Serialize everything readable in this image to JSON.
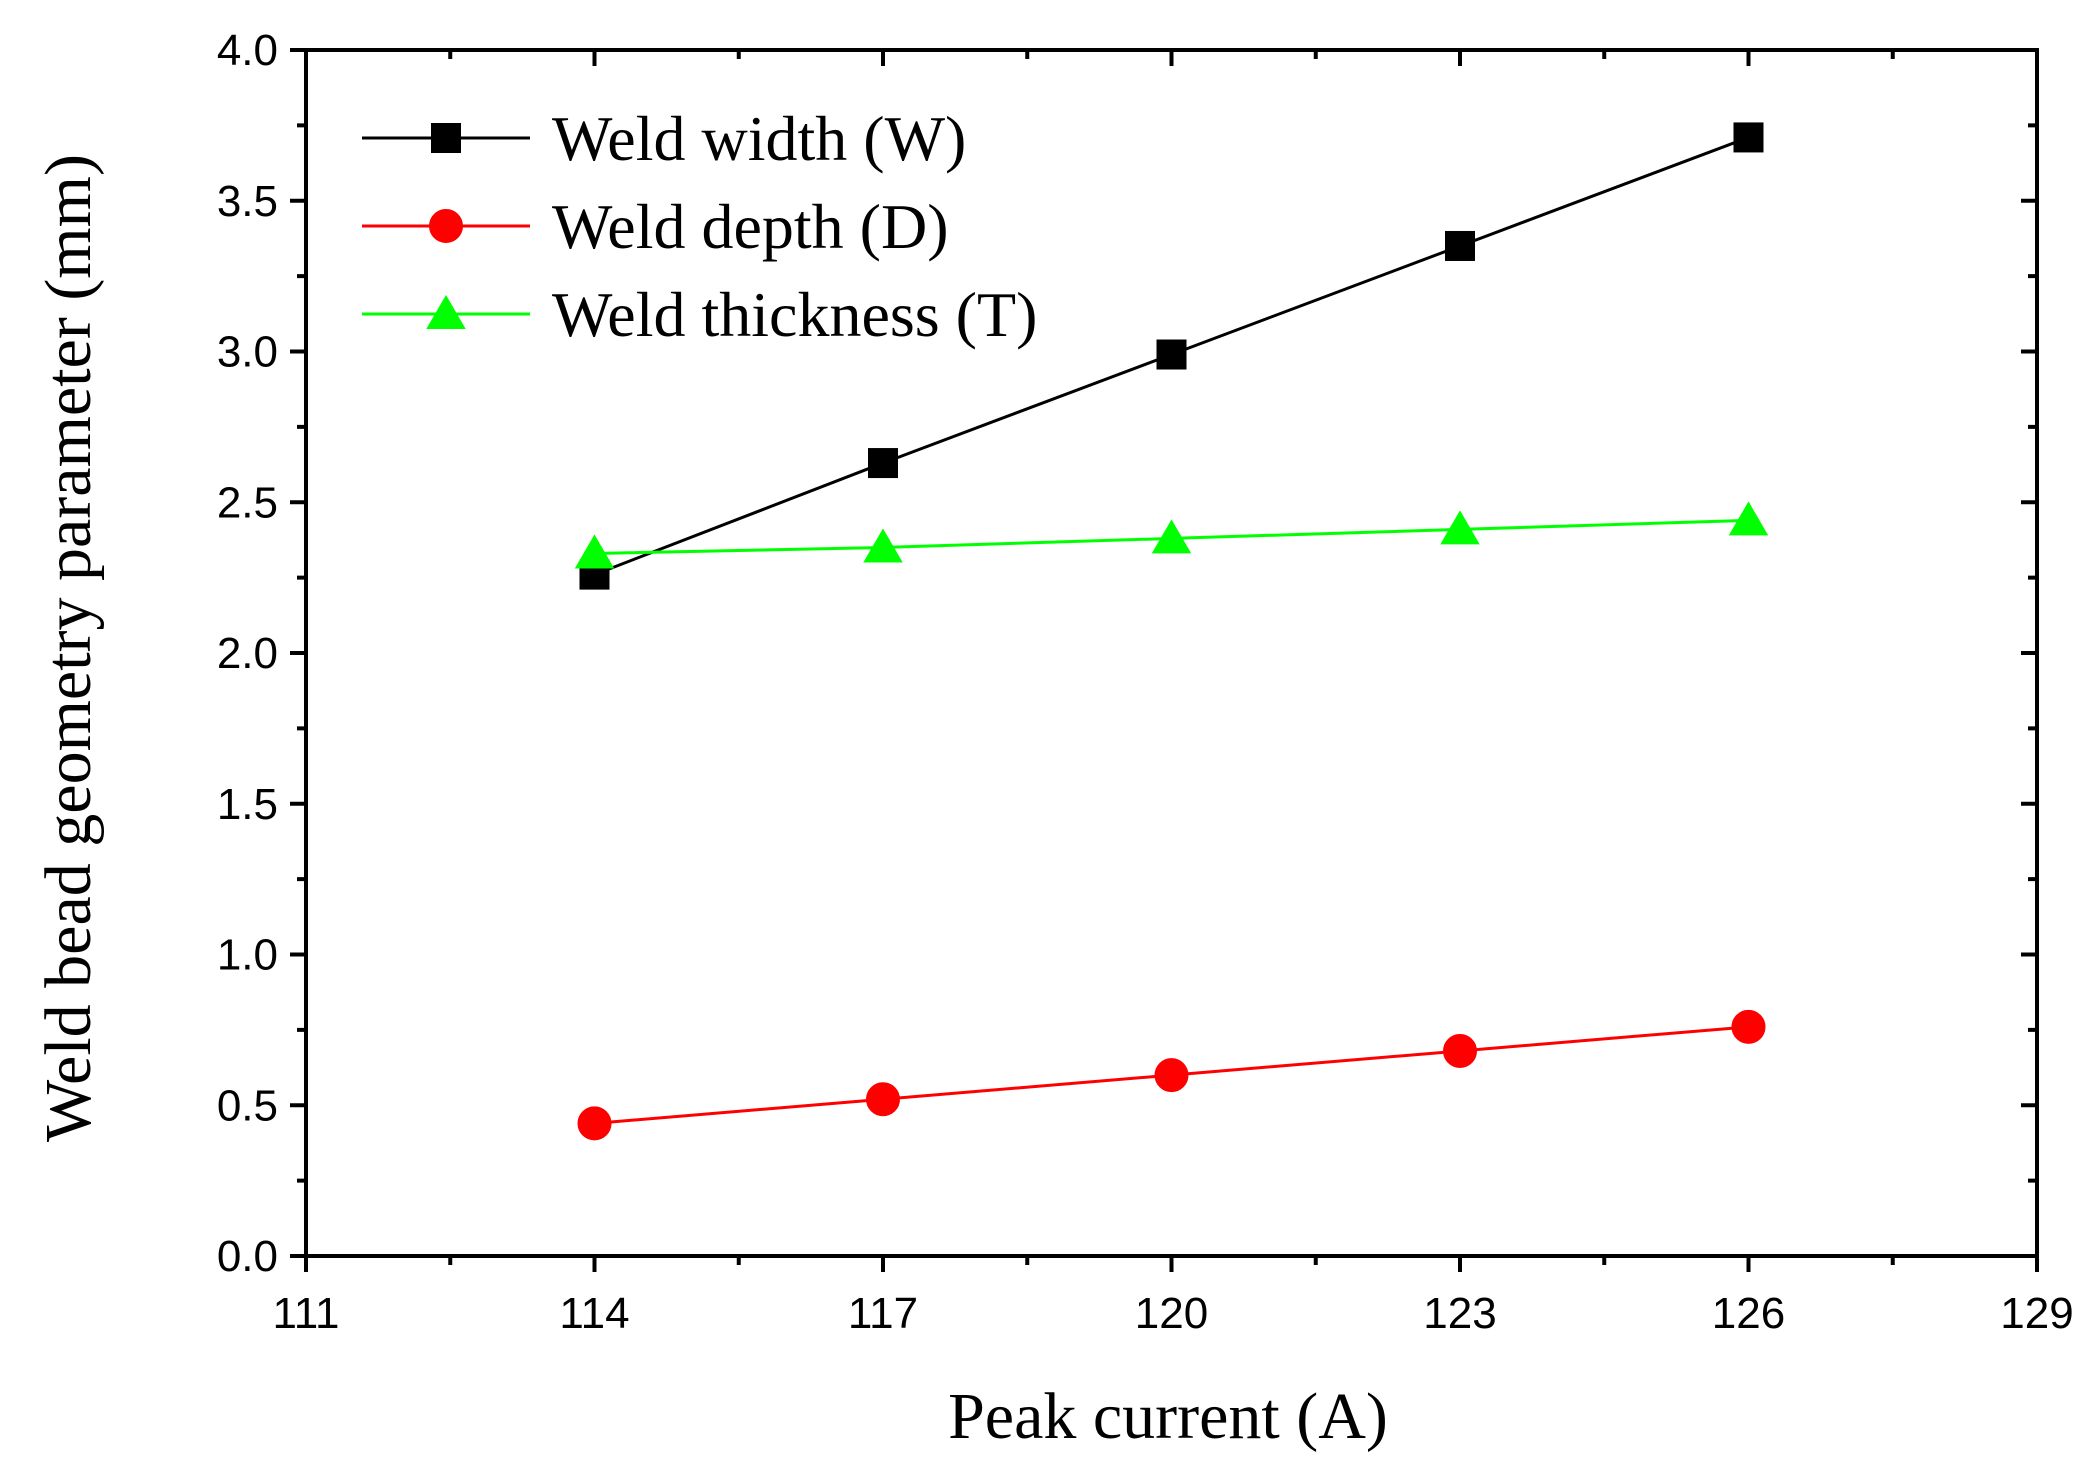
{
  "chart_data": {
    "type": "line",
    "title": "",
    "xlabel": "Peak current (A)",
    "ylabel": "Weld bead geometry parameter (mm)",
    "xlim": [
      111,
      129
    ],
    "ylim": [
      0.0,
      4.0
    ],
    "x_ticks": [
      "111",
      "114",
      "117",
      "120",
      "123",
      "126",
      "129"
    ],
    "x_tick_values": [
      111,
      114,
      117,
      120,
      123,
      126,
      129
    ],
    "y_ticks": [
      "0.0",
      "0.5",
      "1.0",
      "1.5",
      "2.0",
      "2.5",
      "3.0",
      "3.5",
      "4.0"
    ],
    "y_tick_values": [
      0.0,
      0.5,
      1.0,
      1.5,
      2.0,
      2.5,
      3.0,
      3.5,
      4.0
    ],
    "grid": false,
    "legend_position": "top-left",
    "x": [
      114,
      117,
      120,
      123,
      126
    ],
    "series": [
      {
        "name": "Weld width (W)",
        "values": [
          2.26,
          2.63,
          2.99,
          3.35,
          3.71
        ],
        "color": "#000000",
        "marker": "square"
      },
      {
        "name": "Weld depth (D)",
        "values": [
          0.44,
          0.52,
          0.6,
          0.68,
          0.76
        ],
        "color": "#ff0000",
        "marker": "circle"
      },
      {
        "name": "Weld thickness (T)",
        "values": [
          2.33,
          2.35,
          2.38,
          2.41,
          2.44
        ],
        "color": "#00ff00",
        "marker": "triangle"
      }
    ]
  }
}
